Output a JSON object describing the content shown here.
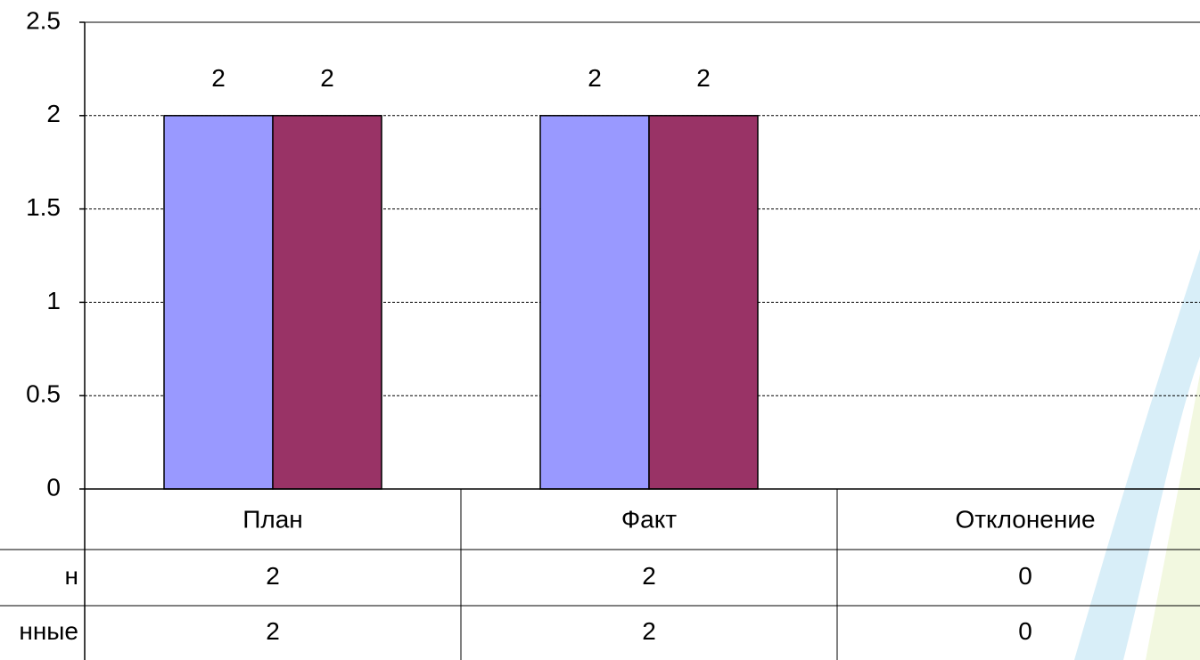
{
  "chart_data": {
    "type": "bar",
    "categories": [
      "План",
      "Факт",
      "Отклонение"
    ],
    "series": [
      {
        "name": "н",
        "color": "#9999ff",
        "values": [
          2,
          2,
          0
        ]
      },
      {
        "name": "нные",
        "color": "#993366",
        "values": [
          2,
          2,
          0
        ]
      }
    ],
    "ylim": [
      0,
      2.5
    ],
    "yticks": [
      0,
      0.5,
      1,
      1.5,
      2,
      2.5
    ],
    "grid": true,
    "data_table": true
  }
}
